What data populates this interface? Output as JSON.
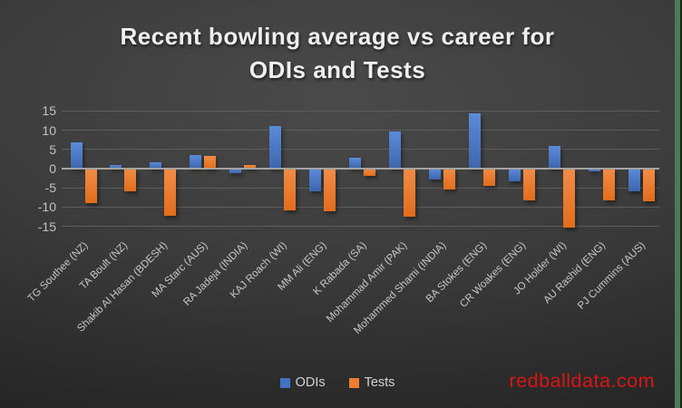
{
  "title": {
    "lines": [
      "Recent bowling average vs career for",
      "ODIs and Tests"
    ]
  },
  "watermark": "redballdata.com",
  "colors": {
    "background_center": "#4a4a4a",
    "background_edge": "#212121",
    "gridline": "#5d5d5d",
    "zero_axis": "#a3a3a3",
    "title_text": "#efefef",
    "axis_text": "#c2c2c2",
    "legend_text": "#d2d2d2",
    "watermark_red": "#d91515",
    "right_edge_green": "#4f7a58"
  },
  "chart_data": {
    "type": "bar",
    "title": "Recent bowling average vs career for ODIs and Tests",
    "xlabel": "",
    "ylabel": "",
    "ylim": [
      -15,
      15
    ],
    "yticks": [
      15,
      10,
      5,
      0,
      -5,
      -10,
      -15
    ],
    "grid": true,
    "legend_position": "bottom",
    "categories": [
      "TG Southee (NZ)",
      "TA Boult (NZ)",
      "Shakib Al Hasan (BDESH)",
      "MA Starc (AUS)",
      "RA Jadeja (INDIA)",
      "KAJ Roach (WI)",
      "MM Ali (ENG)",
      "K Rabada (SA)",
      "Mohammad Amir (PAK)",
      "Mohammed Shami (INDIA)",
      "BA Stokes (ENG)",
      "CR Woakes (ENG)",
      "JO Holder (WI)",
      "AU Rashid (ENG)",
      "PJ Cummins (AUS)"
    ],
    "series": [
      {
        "name": "ODIs",
        "color": "#4472C4",
        "gradient": [
          "#5b8bd9",
          "#3e66ae"
        ],
        "values": [
          6.8,
          0.9,
          1.7,
          3.5,
          -1.1,
          11.2,
          -5.8,
          2.8,
          9.7,
          -2.8,
          14.4,
          -3.4,
          5.8,
          -0.8,
          -5.8
        ]
      },
      {
        "name": "Tests",
        "color": "#ED7D31",
        "gradient": [
          "#f18c47",
          "#e26d1b"
        ],
        "values": [
          -9.0,
          -6.0,
          -12.2,
          3.2,
          1.0,
          -10.8,
          -11.0,
          -1.9,
          -12.4,
          -5.5,
          -4.4,
          -8.3,
          -15.4,
          -8.3,
          -8.6
        ]
      }
    ]
  }
}
